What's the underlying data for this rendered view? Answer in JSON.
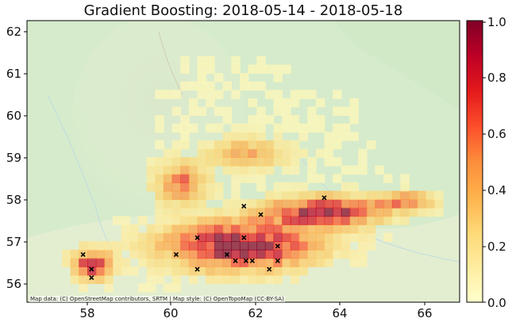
{
  "title": "Gradient Boosting: 2018-05-14 - 2018-05-18",
  "attribution": "Map data: (C) OpenStreetMap contributors, SRTM | Map style: (C) OpenTopoMap (CC-BY-SA)",
  "map": {
    "x_ticks": [
      "58",
      "60",
      "62",
      "64",
      "66"
    ],
    "y_ticks": [
      "62",
      "61",
      "60",
      "59",
      "58",
      "57",
      "56"
    ],
    "lon_range": [
      56.6,
      68.9
    ],
    "lat_range": [
      55.8,
      62.3
    ],
    "basemap_colors": [
      "#d5eacb",
      "#f1efd8",
      "#e4efcf"
    ]
  },
  "colorbar": {
    "ticks": [
      "1.0",
      "0.8",
      "0.6",
      "0.4",
      "0.2",
      "0.0"
    ],
    "colormap": "YlOrRd",
    "min": 0.0,
    "max": 1.0
  },
  "fire_markers": [
    [
      57.9,
      56.7
    ],
    [
      58.1,
      56.35
    ],
    [
      58.1,
      56.15
    ],
    [
      60.1,
      56.7
    ],
    [
      60.6,
      57.1
    ],
    [
      60.6,
      56.35
    ],
    [
      61.3,
      56.7
    ],
    [
      61.5,
      56.55
    ],
    [
      61.75,
      56.55
    ],
    [
      61.9,
      56.55
    ],
    [
      61.7,
      57.1
    ],
    [
      61.7,
      57.85
    ],
    [
      62.1,
      57.65
    ],
    [
      62.3,
      56.35
    ],
    [
      62.5,
      56.9
    ],
    [
      62.5,
      56.55
    ],
    [
      63.6,
      58.05
    ]
  ]
}
